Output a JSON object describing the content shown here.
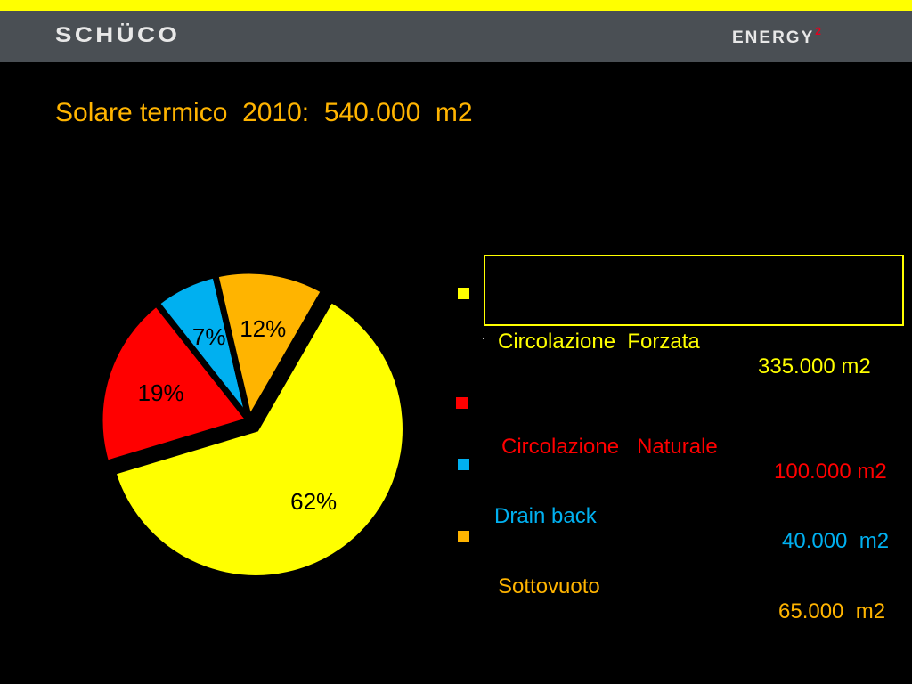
{
  "header": {
    "logo_left": "SCHÜCO",
    "logo_right": "ENERGY",
    "logo_right_sup": "2"
  },
  "title": "Solare termico  2010:  540.000  m2",
  "colors": {
    "header_stripe": "#ffff00",
    "header_bar": "#4a4f54",
    "title": "#ffb400"
  },
  "legend": [
    {
      "name": "Circolazione  Forzata",
      "value": "335.000 m2",
      "color": "#ffff00",
      "text_color": "#ffff00",
      "highlighted": true
    },
    {
      "name": "Circolazione   Naturale",
      "value": "100.000 m2",
      "color": "#ff0000",
      "text_color": "#ff0000"
    },
    {
      "name": "Drain back",
      "value": "40.000  m2",
      "color": "#00b0f0",
      "text_color": "#00b0f0"
    },
    {
      "name": "Sottovuoto",
      "value": "65.000  m2",
      "color": "#ffb400",
      "text_color": "#ffb400"
    }
  ],
  "chart_data": {
    "type": "pie",
    "title": "",
    "slices": [
      {
        "label": "62%",
        "value": 62,
        "color": "#ffff00",
        "exploded": true
      },
      {
        "label": "19%",
        "value": 19,
        "color": "#ff0000"
      },
      {
        "label": "7%",
        "value": 7,
        "color": "#00b0f0"
      },
      {
        "label": "12%",
        "value": 12,
        "color": "#ffb400"
      }
    ]
  }
}
